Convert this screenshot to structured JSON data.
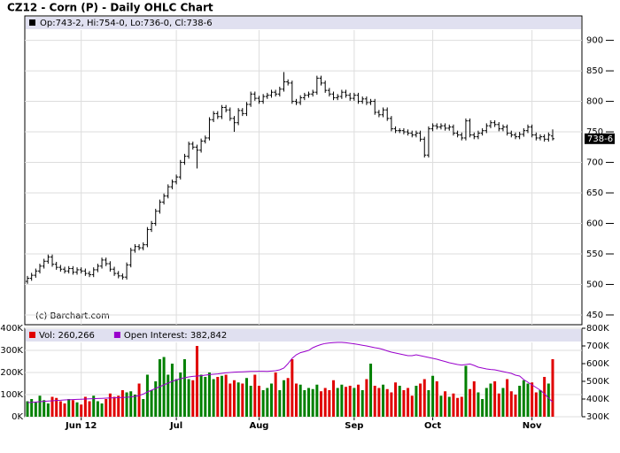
{
  "chart_data": [
    {
      "type": "ohlc",
      "title": "CZ12 - Corn (P) - Daily OHLC Chart",
      "name": "Op:743-2, Hi:754-0, Lo:736-0, Cl:738-6",
      "watermark": "(c) Barchart.com",
      "last_price_label": "738-6",
      "color": "#000000",
      "grid": true,
      "ylim": [
        434,
        940
      ],
      "yticks": [
        450,
        500,
        550,
        600,
        650,
        700,
        750,
        800,
        850,
        900
      ],
      "open": [
        505,
        510,
        515,
        522,
        530,
        538,
        545,
        533,
        528,
        525,
        522,
        526,
        520,
        524,
        522,
        518,
        516,
        524,
        530,
        540,
        534,
        525,
        518,
        514,
        512,
        532,
        556,
        562,
        560,
        565,
        590,
        600,
        620,
        635,
        645,
        660,
        668,
        676,
        700,
        710,
        730,
        725,
        720,
        735,
        740,
        770,
        780,
        775,
        790,
        786,
        772,
        765,
        785,
        780,
        795,
        812,
        805,
        800,
        808,
        810,
        815,
        812,
        820,
        832,
        830,
        800,
        798,
        806,
        810,
        812,
        815,
        838,
        830,
        818,
        812,
        806,
        808,
        815,
        810,
        805,
        810,
        800,
        804,
        798,
        800,
        782,
        778,
        786,
        772,
        755,
        752,
        752,
        750,
        748,
        745,
        748,
        738,
        712,
        755,
        760,
        758,
        760,
        756,
        758,
        748,
        745,
        740,
        768,
        745,
        742,
        748,
        752,
        760,
        765,
        762,
        755,
        758,
        748,
        745,
        742,
        746,
        752,
        758,
        745,
        740,
        742,
        738,
        743.25
      ],
      "high": [
        514,
        519,
        526,
        534,
        542,
        549,
        549,
        537,
        532,
        529,
        530,
        530,
        528,
        528,
        526,
        522,
        528,
        534,
        544,
        544,
        538,
        529,
        522,
        518,
        536,
        560,
        566,
        566,
        569,
        594,
        604,
        624,
        639,
        649,
        664,
        672,
        680,
        704,
        714,
        734,
        734,
        729,
        739,
        744,
        774,
        784,
        784,
        794,
        794,
        790,
        776,
        789,
        789,
        799,
        816,
        816,
        809,
        812,
        814,
        819,
        819,
        824,
        848,
        836,
        834,
        804,
        810,
        814,
        816,
        819,
        842,
        842,
        834,
        822,
        816,
        812,
        819,
        819,
        814,
        814,
        814,
        808,
        808,
        804,
        804,
        786,
        790,
        790,
        776,
        759,
        756,
        756,
        754,
        752,
        752,
        752,
        742,
        759,
        764,
        764,
        764,
        764,
        762,
        762,
        752,
        749,
        772,
        772,
        749,
        752,
        756,
        764,
        769,
        769,
        766,
        762,
        762,
        752,
        749,
        750,
        756,
        762,
        762,
        749,
        746,
        746,
        749,
        754
      ],
      "low": [
        501,
        506,
        511,
        518,
        526,
        534,
        529,
        524,
        521,
        518,
        518,
        516,
        516,
        518,
        514,
        512,
        512,
        520,
        526,
        530,
        521,
        514,
        510,
        508,
        508,
        528,
        552,
        556,
        556,
        561,
        586,
        596,
        616,
        631,
        641,
        656,
        664,
        672,
        696,
        706,
        721,
        690,
        716,
        731,
        736,
        766,
        771,
        771,
        782,
        768,
        750,
        761,
        776,
        776,
        791,
        801,
        796,
        796,
        804,
        806,
        808,
        808,
        816,
        826,
        796,
        794,
        794,
        802,
        806,
        808,
        811,
        826,
        814,
        808,
        802,
        802,
        804,
        806,
        801,
        801,
        796,
        796,
        794,
        794,
        778,
        774,
        774,
        768,
        751,
        748,
        748,
        746,
        744,
        741,
        741,
        734,
        708,
        708,
        751,
        754,
        754,
        752,
        752,
        744,
        741,
        736,
        736,
        741,
        738,
        738,
        744,
        748,
        756,
        758,
        751,
        751,
        744,
        741,
        738,
        738,
        742,
        748,
        741,
        736,
        736,
        734,
        734,
        736
      ],
      "close": [
        510,
        515,
        522,
        530,
        538,
        545,
        533,
        528,
        525,
        522,
        526,
        520,
        524,
        522,
        518,
        516,
        524,
        530,
        540,
        534,
        525,
        518,
        514,
        512,
        532,
        556,
        562,
        560,
        565,
        590,
        600,
        620,
        635,
        645,
        660,
        668,
        676,
        700,
        710,
        730,
        725,
        720,
        735,
        740,
        770,
        780,
        775,
        790,
        786,
        772,
        765,
        785,
        780,
        795,
        812,
        805,
        800,
        808,
        810,
        815,
        812,
        820,
        832,
        830,
        800,
        798,
        806,
        810,
        812,
        815,
        838,
        830,
        818,
        812,
        806,
        808,
        815,
        810,
        805,
        810,
        800,
        804,
        798,
        800,
        782,
        778,
        786,
        772,
        755,
        752,
        752,
        750,
        748,
        745,
        748,
        738,
        712,
        755,
        760,
        758,
        760,
        756,
        758,
        748,
        745,
        740,
        768,
        745,
        742,
        748,
        752,
        760,
        765,
        762,
        755,
        758,
        748,
        745,
        742,
        746,
        752,
        758,
        745,
        740,
        742,
        738,
        745,
        738.75
      ]
    },
    {
      "type": "bar",
      "grid": true,
      "categories": [
        null,
        null,
        null,
        null,
        null,
        null,
        null,
        null,
        null,
        null,
        null,
        null,
        null,
        "Jun 12",
        null,
        null,
        null,
        null,
        null,
        null,
        null,
        null,
        null,
        null,
        null,
        null,
        null,
        null,
        null,
        null,
        null,
        null,
        null,
        null,
        null,
        null,
        "Jul",
        null,
        null,
        null,
        null,
        null,
        null,
        null,
        null,
        null,
        null,
        null,
        null,
        null,
        null,
        null,
        null,
        null,
        null,
        null,
        "Aug",
        null,
        null,
        null,
        null,
        null,
        null,
        null,
        null,
        null,
        null,
        null,
        null,
        null,
        null,
        null,
        null,
        null,
        null,
        null,
        null,
        null,
        null,
        "Sep",
        null,
        null,
        null,
        null,
        null,
        null,
        null,
        null,
        null,
        null,
        null,
        null,
        null,
        null,
        null,
        null,
        null,
        null,
        "Oct",
        null,
        null,
        null,
        null,
        null,
        null,
        null,
        null,
        null,
        null,
        null,
        null,
        null,
        null,
        null,
        null,
        null,
        null,
        null,
        null,
        null,
        null,
        null,
        "Nov",
        null,
        null,
        null,
        null,
        null
      ],
      "ylim": [
        0,
        400000
      ],
      "yticks": [
        {
          "value": 0,
          "label": "0K"
        },
        {
          "value": 100000,
          "label": "100K"
        },
        {
          "value": 200000,
          "label": "200K"
        },
        {
          "value": 300000,
          "label": "300K"
        },
        {
          "value": 400000,
          "label": "400K"
        }
      ],
      "y2lim": [
        300000,
        800000
      ],
      "y2ticks": [
        {
          "value": 300000,
          "label": "300K"
        },
        {
          "value": 400000,
          "label": "400K"
        },
        {
          "value": 500000,
          "label": "500K"
        },
        {
          "value": 600000,
          "label": "600K"
        },
        {
          "value": 700000,
          "label": "700K"
        },
        {
          "value": 800000,
          "label": "800K"
        }
      ],
      "series": [
        {
          "name": "Vol: 260,266",
          "color": "#e00000",
          "up_color": "#008000",
          "axis": "y",
          "values": [
            70000,
            80000,
            65000,
            95000,
            75000,
            60000,
            90000,
            85000,
            70000,
            60000,
            80000,
            75000,
            65000,
            55000,
            90000,
            70000,
            95000,
            70000,
            60000,
            80000,
            105000,
            90000,
            95000,
            120000,
            110000,
            115000,
            100000,
            150000,
            80000,
            190000,
            120000,
            160000,
            260000,
            270000,
            190000,
            240000,
            170000,
            200000,
            260000,
            170000,
            165000,
            320000,
            190000,
            180000,
            200000,
            170000,
            180000,
            185000,
            190000,
            150000,
            165000,
            155000,
            150000,
            175000,
            140000,
            190000,
            140000,
            120000,
            130000,
            150000,
            200000,
            120000,
            165000,
            175000,
            260000,
            150000,
            145000,
            120000,
            130000,
            125000,
            145000,
            115000,
            130000,
            120000,
            165000,
            130000,
            145000,
            135000,
            140000,
            130000,
            145000,
            120000,
            170000,
            240000,
            140000,
            130000,
            145000,
            125000,
            110000,
            155000,
            140000,
            120000,
            130000,
            95000,
            140000,
            150000,
            170000,
            120000,
            185000,
            160000,
            95000,
            115000,
            90000,
            105000,
            85000,
            90000,
            230000,
            125000,
            160000,
            110000,
            80000,
            130000,
            150000,
            160000,
            105000,
            130000,
            170000,
            115000,
            100000,
            140000,
            165000,
            150000,
            155000,
            110000,
            120000,
            180000,
            150000,
            260266
          ]
        },
        {
          "name": "Open Interest: 382,842",
          "color": "#9900cc",
          "axis": "y2",
          "values": [
            380000,
            381000,
            383000,
            385000,
            387000,
            389000,
            390000,
            392000,
            393000,
            395000,
            396000,
            397000,
            398000,
            399000,
            400000,
            401000,
            402000,
            403000,
            404000,
            405000,
            406000,
            407000,
            408000,
            409000,
            410000,
            412000,
            415000,
            420000,
            428000,
            440000,
            450000,
            460000,
            470000,
            480000,
            490000,
            500000,
            508000,
            515000,
            520000,
            525000,
            528000,
            530000,
            532000,
            535000,
            538000,
            540000,
            542000,
            545000,
            548000,
            550000,
            552000,
            553000,
            554000,
            555000,
            556000,
            556000,
            557000,
            557000,
            556000,
            558000,
            560000,
            565000,
            575000,
            600000,
            630000,
            650000,
            662000,
            668000,
            675000,
            690000,
            700000,
            708000,
            714000,
            717000,
            719000,
            720000,
            720000,
            718000,
            715000,
            712000,
            708000,
            704000,
            700000,
            695000,
            690000,
            686000,
            680000,
            672000,
            665000,
            660000,
            655000,
            650000,
            645000,
            645000,
            650000,
            645000,
            640000,
            635000,
            630000,
            625000,
            618000,
            612000,
            605000,
            600000,
            595000,
            592000,
            595000,
            598000,
            590000,
            580000,
            575000,
            570000,
            567000,
            565000,
            560000,
            555000,
            550000,
            545000,
            535000,
            530000,
            510000,
            495000,
            480000,
            465000,
            450000,
            430000,
            405000,
            382842
          ]
        }
      ]
    }
  ]
}
